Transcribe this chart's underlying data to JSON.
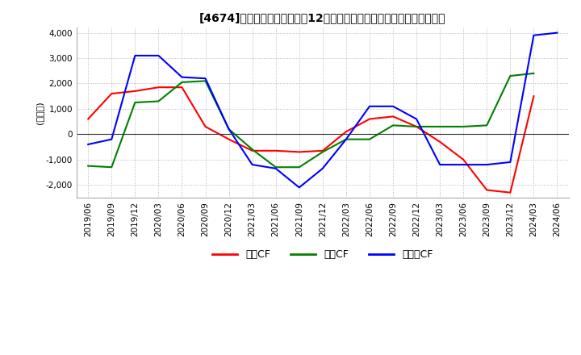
{
  "title": "[4674]　キャッシュフローの12か月移動合計の対前年同期増減額の推移",
  "ylabel": "(百万円)",
  "ylim": [
    -2500,
    4200
  ],
  "yticks": [
    -2000,
    -1000,
    0,
    1000,
    2000,
    3000,
    4000
  ],
  "x_labels": [
    "2019/06",
    "2019/09",
    "2019/12",
    "2020/03",
    "2020/06",
    "2020/09",
    "2020/12",
    "2021/03",
    "2021/06",
    "2021/09",
    "2021/12",
    "2022/03",
    "2022/06",
    "2022/09",
    "2022/12",
    "2023/03",
    "2023/06",
    "2023/09",
    "2023/12",
    "2024/03",
    "2024/06"
  ],
  "series": {
    "営業CF": {
      "color": "#ff0000",
      "values": [
        600,
        1600,
        1700,
        1850,
        1850,
        300,
        -200,
        -650,
        -650,
        -700,
        -650,
        100,
        600,
        700,
        300,
        -300,
        -1000,
        -2200,
        -2300,
        1500,
        null
      ]
    },
    "投資CF": {
      "color": "#008000",
      "values": [
        -1250,
        -1300,
        1250,
        1300,
        2050,
        2100,
        200,
        -600,
        -1300,
        -1300,
        -700,
        -200,
        -200,
        350,
        300,
        300,
        300,
        350,
        2300,
        2400,
        null
      ]
    },
    "フリーCF": {
      "color": "#0000ff",
      "values": [
        -400,
        -200,
        3100,
        3100,
        2250,
        2200,
        200,
        -1200,
        -1350,
        -2100,
        -1350,
        -200,
        1100,
        1100,
        600,
        -1200,
        -1200,
        -1200,
        -1100,
        3900,
        4000
      ]
    }
  },
  "legend_labels": [
    "営業CF",
    "投資CF",
    "フリーCF"
  ],
  "legend_colors": [
    "#ff0000",
    "#008000",
    "#0000ff"
  ],
  "background_color": "#ffffff",
  "grid_color": "#aaaaaa",
  "grid_style": ":"
}
